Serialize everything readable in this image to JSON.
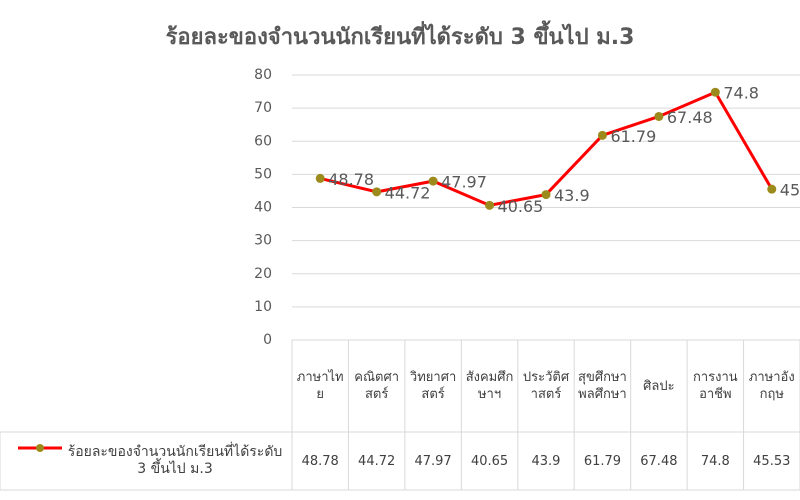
{
  "chart_data": {
    "type": "line",
    "title": "ร้อยละของจำนวนนักเรียนที่ได้ระดับ 3 ขึ้นไป ม.3",
    "categories": [
      "ภาษาไทย",
      "คณิตศาสตร์",
      "วิทยาศาสตร์",
      "สังคมศึกษาฯ",
      "ประวัติศาสตร์",
      "สุขศึกษาพลศึกษา",
      "ศิลปะ",
      "การงานอาชีพ",
      "ภาษาอังกฤษ"
    ],
    "series": [
      {
        "name": "ร้อยละของจำนวนนักเรียนที่ได้ระดับ 3 ขึ้นไป ม.3",
        "color": "#ff0000",
        "marker_color": "#9c8a1c",
        "values": [
          48.78,
          44.72,
          47.97,
          40.65,
          43.9,
          61.79,
          67.48,
          74.8,
          45.53
        ]
      }
    ],
    "ylim": [
      0,
      80
    ],
    "yticks": [
      0,
      10,
      20,
      30,
      40,
      50,
      60,
      70,
      80
    ],
    "grid": true,
    "legend": "data-table"
  }
}
